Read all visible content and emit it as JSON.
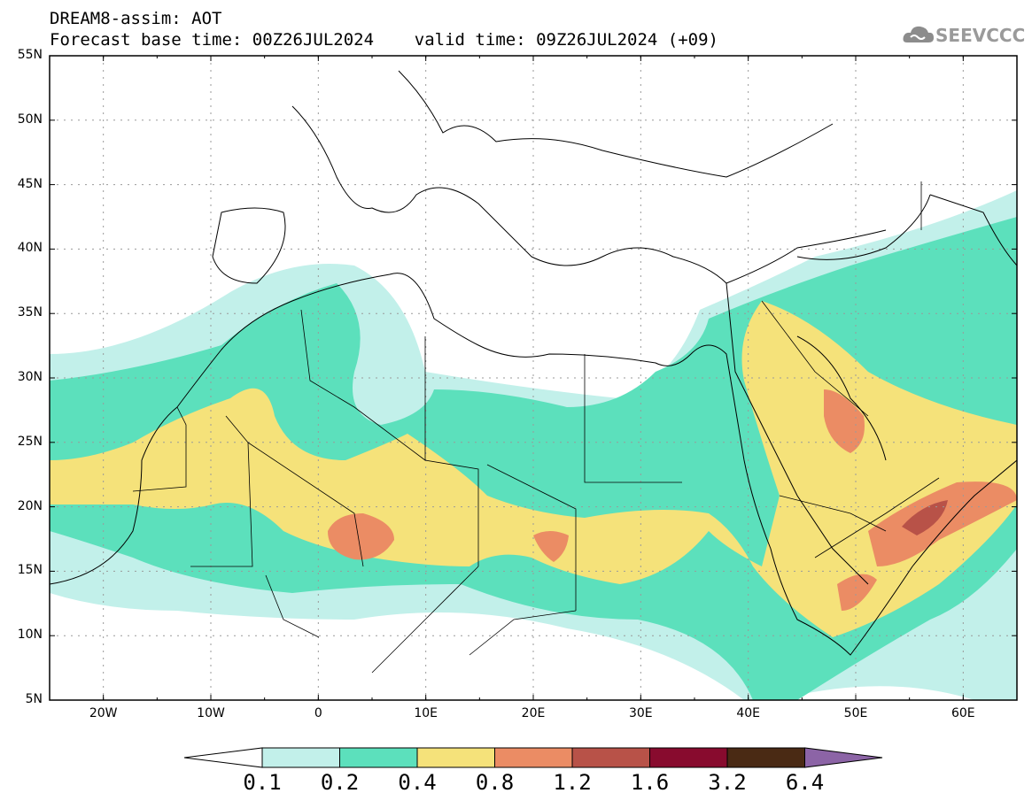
{
  "header": {
    "line1": "DREAM8-assim: AOT",
    "line2": "Forecast base time: 00Z26JUL2024    valid time: 09Z26JUL2024 (+09)"
  },
  "logo": {
    "text": "SEEVCCC",
    "icon": "cloud-icon"
  },
  "map": {
    "lon_range": [
      -25,
      65
    ],
    "lat_range": [
      5,
      55
    ],
    "lat_labels": [
      "55N",
      "50N",
      "45N",
      "40N",
      "35N",
      "30N",
      "25N",
      "20N",
      "15N",
      "10N",
      "5N"
    ],
    "lon_labels": [
      "20W",
      "10W",
      "0",
      "10E",
      "20E",
      "30E",
      "40E",
      "50E",
      "60E"
    ],
    "grid": true
  },
  "colorbar": {
    "labels": [
      "0.1",
      "0.2",
      "0.4",
      "0.8",
      "1.2",
      "1.6",
      "3.2",
      "6.4"
    ],
    "colors": [
      "#ffffff",
      "#c2f0ea",
      "#5ce0bc",
      "#f5e27a",
      "#eb8c64",
      "#b85248",
      "#880b2e",
      "#4a2a14",
      "#8c64a6"
    ]
  }
}
